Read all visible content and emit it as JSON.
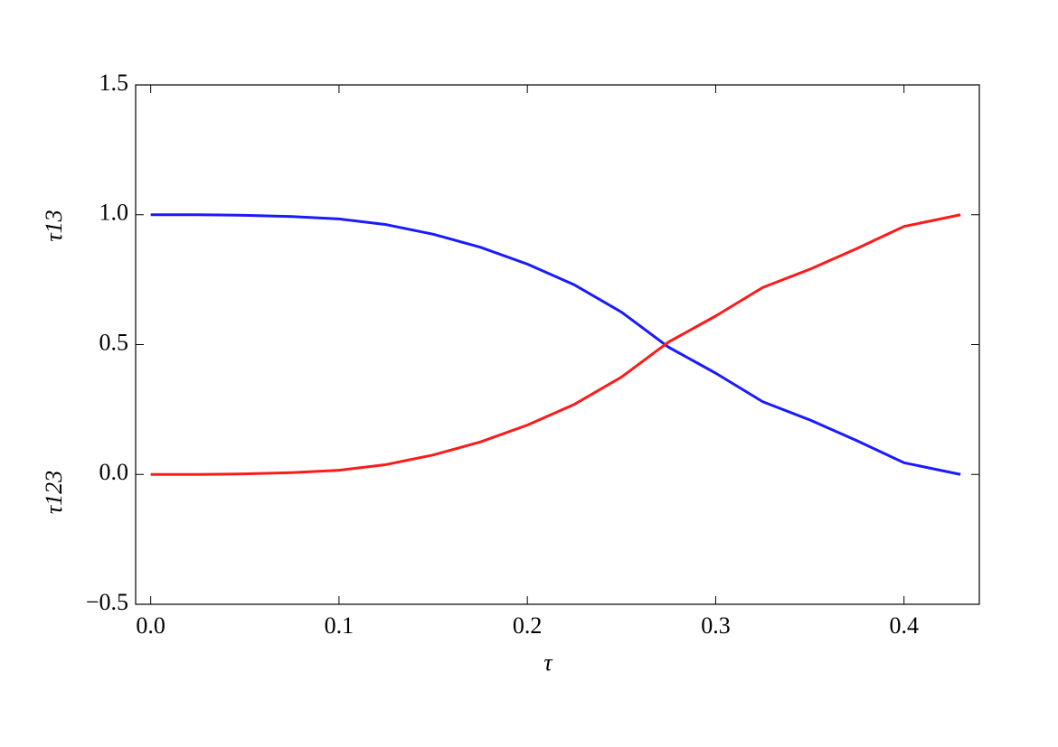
{
  "chart_data": {
    "type": "line",
    "xlabel": "τ",
    "ylabels": [
      "τ13",
      "τ123"
    ],
    "x": [
      0,
      0.025,
      0.05,
      0.075,
      0.1,
      0.125,
      0.15,
      0.175,
      0.2,
      0.225,
      0.25,
      0.275,
      0.3,
      0.325,
      0.35,
      0.375,
      0.4,
      0.43
    ],
    "series": [
      {
        "color": "#1a1aff",
        "values": [
          1.0,
          1.0,
          0.998,
          0.993,
          0.984,
          0.962,
          0.925,
          0.875,
          0.81,
          0.73,
          0.625,
          0.49,
          0.39,
          0.28,
          0.21,
          0.13,
          0.045,
          0.0
        ]
      },
      {
        "color": "#ff1a1a",
        "values": [
          0.0,
          0.0,
          0.002,
          0.007,
          0.016,
          0.038,
          0.075,
          0.125,
          0.19,
          0.27,
          0.375,
          0.51,
          0.61,
          0.72,
          0.79,
          0.87,
          0.955,
          1.0
        ]
      }
    ],
    "xlim": [
      -0.008,
      0.44
    ],
    "ylim": [
      -0.5,
      1.5
    ],
    "xticks": [
      {
        "value": 0,
        "label": "0.0"
      },
      {
        "value": 0.1,
        "label": "0.1"
      },
      {
        "value": 0.2,
        "label": "0.2"
      },
      {
        "value": 0.3,
        "label": "0.3"
      },
      {
        "value": 0.4,
        "label": "0.4"
      }
    ],
    "yticks": [
      {
        "value": -0.5,
        "label": "−0.5"
      },
      {
        "value": 0,
        "label": "0.0"
      },
      {
        "value": 0.5,
        "label": "0.5"
      },
      {
        "value": 1,
        "label": "1.0"
      },
      {
        "value": 1.5,
        "label": "1.5"
      }
    ],
    "grid": false
  }
}
